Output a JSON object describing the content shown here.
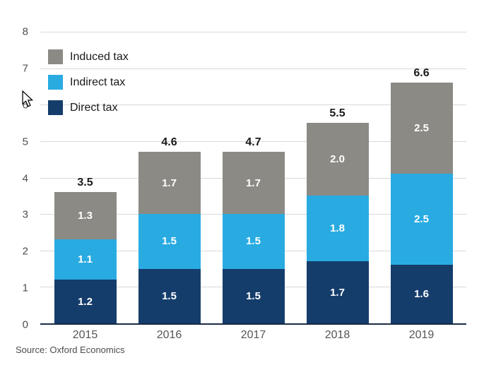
{
  "chart_data": {
    "type": "bar",
    "stacked": true,
    "categories": [
      "2015",
      "2016",
      "2017",
      "2018",
      "2019"
    ],
    "series": [
      {
        "name": "Direct tax",
        "color": "#143d6b",
        "values": [
          1.2,
          1.5,
          1.5,
          1.7,
          1.6
        ]
      },
      {
        "name": "Indirect tax",
        "color": "#29abe2",
        "values": [
          1.1,
          1.5,
          1.5,
          1.8,
          2.5
        ]
      },
      {
        "name": "Induced tax",
        "color": "#8b8a84",
        "values": [
          1.3,
          1.7,
          1.7,
          2.0,
          2.5
        ]
      }
    ],
    "totals": [
      "3.5",
      "4.6",
      "4.7",
      "5.5",
      "6.6"
    ],
    "ylim": [
      0,
      8
    ],
    "ytick_step": 1,
    "grid": true,
    "legend_position": "top-left-inside",
    "legend_order": [
      "Induced tax",
      "Indirect tax",
      "Direct tax"
    ],
    "source": "Source: Oxford Economics"
  },
  "colors": {
    "gridline": "#d9d9d9",
    "axis_baseline": "#1b2b45",
    "tick_text": "#4d4d4d",
    "total_text": "#1a1a1a"
  }
}
